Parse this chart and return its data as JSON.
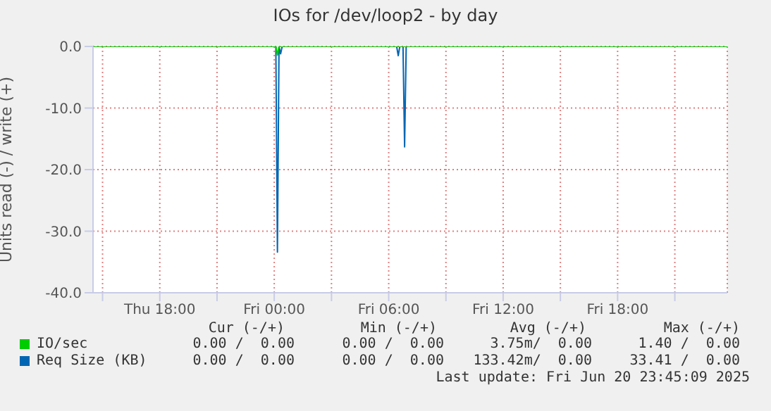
{
  "chart_data": {
    "type": "line",
    "title": "IOs for /dev/loop2 - by day",
    "ylabel": "Units read (-) / write (+)",
    "xlim": [
      "2025-06-19T14:30",
      "2025-06-20T23:45"
    ],
    "xticks": [
      {
        "value": "2025-06-19T15:00",
        "label": null
      },
      {
        "value": "2025-06-19T18:00",
        "label": "Thu 18:00"
      },
      {
        "value": "2025-06-19T21:00",
        "label": null
      },
      {
        "value": "2025-06-20T00:00",
        "label": "Fri 00:00"
      },
      {
        "value": "2025-06-20T03:00",
        "label": null
      },
      {
        "value": "2025-06-20T06:00",
        "label": "Fri 06:00"
      },
      {
        "value": "2025-06-20T09:00",
        "label": null
      },
      {
        "value": "2025-06-20T12:00",
        "label": "Fri 12:00"
      },
      {
        "value": "2025-06-20T15:00",
        "label": null
      },
      {
        "value": "2025-06-20T18:00",
        "label": "Fri 18:00"
      },
      {
        "value": "2025-06-20T21:00",
        "label": null
      }
    ],
    "ylim": [
      -40,
      0
    ],
    "yticks": [
      {
        "value": -40,
        "label": "-40.0"
      },
      {
        "value": -30,
        "label": "-30.0"
      },
      {
        "value": -20,
        "label": "-20.0"
      },
      {
        "value": -10,
        "label": "-10.0"
      },
      {
        "value": 0,
        "label": "0.0"
      }
    ],
    "grid": true,
    "legend": "bottom",
    "marker": "none",
    "series": [
      {
        "name": "IO/sec",
        "color": "#00cc00",
        "x": [
          "2025-06-19T14:30",
          "2025-06-20T00:05",
          "2025-06-20T00:10",
          "2025-06-20T00:15",
          "2025-06-20T23:45"
        ],
        "values": [
          0,
          0,
          -1.4,
          0,
          0
        ]
      },
      {
        "name": "Req Size (KB)",
        "color": "#0066b3",
        "x": [
          "2025-06-19T14:30",
          "2025-06-20T00:05",
          "2025-06-20T00:10",
          "2025-06-20T00:15",
          "2025-06-20T00:20",
          "2025-06-20T00:25",
          "2025-06-20T06:25",
          "2025-06-20T06:30",
          "2025-06-20T06:35",
          "2025-06-20T06:45",
          "2025-06-20T06:50",
          "2025-06-20T06:55",
          "2025-06-20T23:45"
        ],
        "values": [
          0,
          0,
          -33.4,
          0,
          -1.2,
          0,
          0,
          -1.5,
          0,
          0,
          -16.3,
          0,
          0
        ]
      }
    ],
    "annotations": [
      "Cur (-/+)",
      "Min (-/+)",
      "Avg (-/+)",
      "Max (-/+)",
      "0.00 /  0.00",
      "0.00 /  0.00",
      "3.75m/  0.00",
      "1.40 /  0.00",
      "0.00 /  0.00",
      "0.00 /  0.00",
      "133.42m/  0.00",
      "33.41 /  0.00",
      "Last update: Fri Jun 20 23:45:09 2025"
    ]
  }
}
